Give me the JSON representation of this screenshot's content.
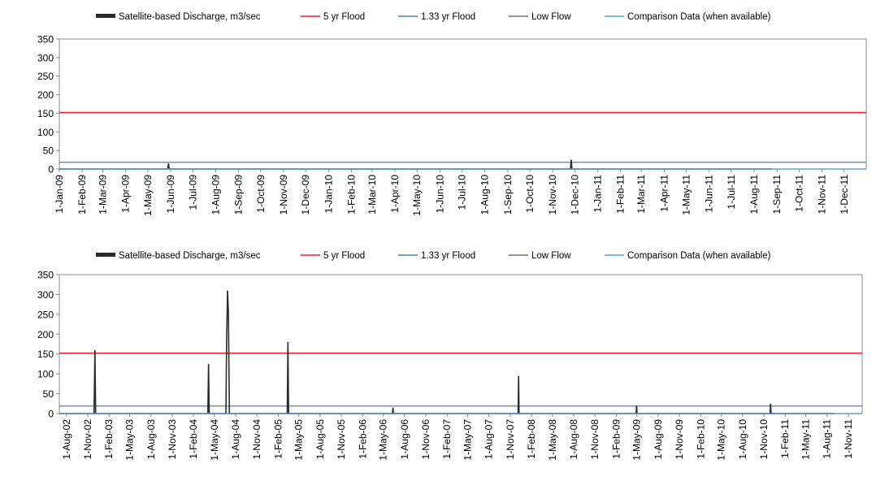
{
  "legend": {
    "items": [
      {
        "label": "Satellite-based Discharge, m3/sec",
        "color": "#2b2b2b",
        "style": "thick"
      },
      {
        "label": "5 yr Flood",
        "color": "#e8232a",
        "style": "line"
      },
      {
        "label": "1.33 yr Flood",
        "color": "#4f81bd",
        "style": "line"
      },
      {
        "label": "Low Flow",
        "color": "#8064a2",
        "style": "line"
      },
      {
        "label": "Comparison Data (when available)",
        "color": "#4bacc6",
        "style": "line"
      }
    ]
  },
  "chart_data": [
    {
      "type": "line",
      "ylim": [
        0,
        350
      ],
      "yticks": [
        0,
        50,
        100,
        150,
        200,
        250,
        300,
        350
      ],
      "x_range": [
        "2009-01-01",
        "2011-12-31"
      ],
      "xticks": [
        "1-Jan-09",
        "1-Feb-09",
        "1-Mar-09",
        "1-Apr-09",
        "1-May-09",
        "1-Jun-09",
        "1-Jul-09",
        "1-Aug-09",
        "1-Sep-09",
        "1-Oct-09",
        "1-Nov-09",
        "1-Dec-09",
        "1-Jan-10",
        "1-Feb-10",
        "1-Mar-10",
        "1-Apr-10",
        "1-May-10",
        "1-Jun-10",
        "1-Jul-10",
        "1-Aug-10",
        "1-Sep-10",
        "1-Oct-10",
        "1-Nov-10",
        "1-Dec-10",
        "1-Jan-11",
        "1-Feb-11",
        "1-Mar-11",
        "1-Apr-11",
        "1-May-11",
        "1-Jun-11",
        "1-Jul-11",
        "1-Aug-11",
        "1-Sep-11",
        "1-Oct-11",
        "1-Nov-11",
        "1-Dec-11"
      ],
      "thresholds": {
        "5 yr Flood": 152,
        "1.33 yr Flood": 18,
        "Low Flow": 0
      },
      "series": [
        {
          "name": "Satellite-based Discharge, m3/sec",
          "points": [
            [
              "2009-01-01",
              0
            ],
            [
              "2009-05-28",
              0
            ],
            [
              "2009-05-29",
              15
            ],
            [
              "2009-05-30",
              0
            ],
            [
              "2010-11-25",
              0
            ],
            [
              "2010-11-26",
              25
            ],
            [
              "2010-11-27",
              0
            ],
            [
              "2011-08-25",
              0
            ]
          ]
        },
        {
          "name": "Comparison Data (when available)",
          "points": [
            [
              "2009-01-01",
              0
            ],
            [
              "2011-12-31",
              0
            ]
          ]
        }
      ]
    },
    {
      "type": "line",
      "ylim": [
        0,
        350
      ],
      "yticks": [
        0,
        50,
        100,
        150,
        200,
        250,
        300,
        350
      ],
      "x_range": [
        "2002-07-01",
        "2011-12-31"
      ],
      "xticks": [
        "1-Aug-02",
        "1-Nov-02",
        "1-Feb-03",
        "1-May-03",
        "1-Aug-03",
        "1-Nov-03",
        "1-Feb-04",
        "1-May-04",
        "1-Aug-04",
        "1-Nov-04",
        "1-Feb-05",
        "1-May-05",
        "1-Aug-05",
        "1-Nov-05",
        "1-Feb-06",
        "1-May-06",
        "1-Aug-06",
        "1-Nov-06",
        "1-Feb-07",
        "1-May-07",
        "1-Aug-07",
        "1-Nov-07",
        "1-Feb-08",
        "1-May-08",
        "1-Aug-08",
        "1-Nov-08",
        "1-Feb-09",
        "1-May-09",
        "1-Aug-09",
        "1-Nov-09",
        "1-Feb-10",
        "1-May-10",
        "1-Aug-10",
        "1-Nov-10",
        "1-Feb-11",
        "1-May-11",
        "1-Aug-11",
        "1-Nov-11"
      ],
      "thresholds": {
        "5 yr Flood": 152,
        "1.33 yr Flood": 19,
        "Low Flow": 0
      },
      "series": [
        {
          "name": "Satellite-based Discharge, m3/sec",
          "points": [
            [
              "2002-07-01",
              0
            ],
            [
              "2002-11-28",
              0
            ],
            [
              "2002-12-02",
              160
            ],
            [
              "2002-12-05",
              0
            ],
            [
              "2004-04-03",
              0
            ],
            [
              "2004-04-06",
              125
            ],
            [
              "2004-04-09",
              0
            ],
            [
              "2004-06-20",
              0
            ],
            [
              "2004-06-23",
              180
            ],
            [
              "2004-06-27",
              310
            ],
            [
              "2004-07-01",
              250
            ],
            [
              "2004-07-05",
              0
            ],
            [
              "2005-03-12",
              0
            ],
            [
              "2005-03-15",
              180
            ],
            [
              "2005-03-18",
              0
            ],
            [
              "2006-06-10",
              0
            ],
            [
              "2006-06-12",
              15
            ],
            [
              "2006-06-14",
              0
            ],
            [
              "2007-12-05",
              0
            ],
            [
              "2007-12-07",
              95
            ],
            [
              "2007-12-09",
              0
            ],
            [
              "2009-04-28",
              0
            ],
            [
              "2009-04-30",
              20
            ],
            [
              "2009-05-02",
              0
            ],
            [
              "2010-11-28",
              0
            ],
            [
              "2010-11-30",
              25
            ],
            [
              "2010-12-02",
              0
            ],
            [
              "2011-09-01",
              0
            ]
          ]
        },
        {
          "name": "Comparison Data (when available)",
          "points": [
            [
              "2002-07-01",
              0
            ],
            [
              "2011-12-31",
              0
            ]
          ]
        }
      ]
    }
  ]
}
